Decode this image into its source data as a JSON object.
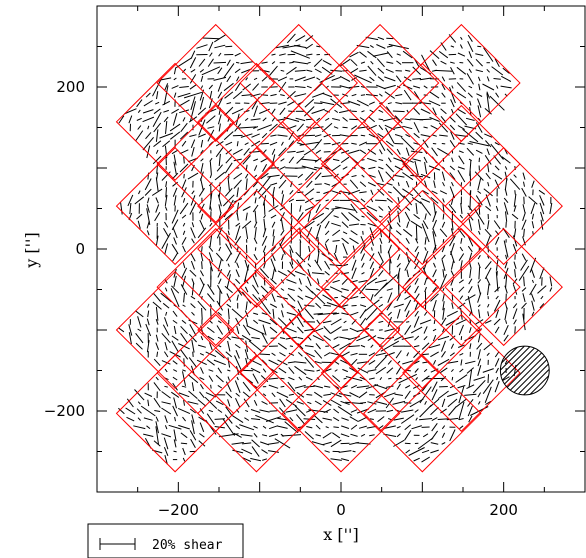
{
  "chart_data": {
    "type": "scatter",
    "xlabel": "x ['']",
    "ylabel": "y ['']",
    "xlim": [
      -300,
      300
    ],
    "ylim": [
      -300,
      300
    ],
    "x_ticks": [
      -200,
      0,
      200
    ],
    "y_ticks": [
      -200,
      0,
      200
    ],
    "x_tick_labels": [
      "−200",
      "0",
      "200"
    ],
    "y_tick_labels": [
      "−200",
      "0",
      "200"
    ],
    "grid": false,
    "legend": {
      "label": "20% shear",
      "position": "bottom-left"
    },
    "tile_half_diagonal": 72,
    "tile_centers": [
      [
        -154,
        205
      ],
      [
        -52,
        205
      ],
      [
        48,
        205
      ],
      [
        148,
        205
      ],
      [
        -204,
        157
      ],
      [
        -104,
        157
      ],
      [
        0,
        157
      ],
      [
        100,
        157
      ],
      [
        -154,
        105
      ],
      [
        -52,
        105
      ],
      [
        48,
        105
      ],
      [
        148,
        105
      ],
      [
        -204,
        53
      ],
      [
        -104,
        53
      ],
      [
        0,
        53
      ],
      [
        100,
        53
      ],
      [
        200,
        53
      ],
      [
        -104,
        0
      ],
      [
        0,
        0
      ],
      [
        100,
        0
      ],
      [
        -154,
        -47
      ],
      [
        -52,
        -47
      ],
      [
        48,
        -47
      ],
      [
        148,
        -47
      ],
      [
        200,
        -47
      ],
      [
        -204,
        -100
      ],
      [
        -104,
        -100
      ],
      [
        0,
        -100
      ],
      [
        100,
        -100
      ],
      [
        -154,
        -153
      ],
      [
        -52,
        -153
      ],
      [
        48,
        -153
      ],
      [
        148,
        -153
      ],
      [
        -204,
        -203
      ],
      [
        -104,
        -203
      ],
      [
        0,
        -203
      ],
      [
        100,
        -203
      ]
    ],
    "beam_circle": {
      "x": 226,
      "y": -150,
      "radius": 30
    },
    "tile_color": "#ff0000",
    "stick_color": "#000000"
  }
}
